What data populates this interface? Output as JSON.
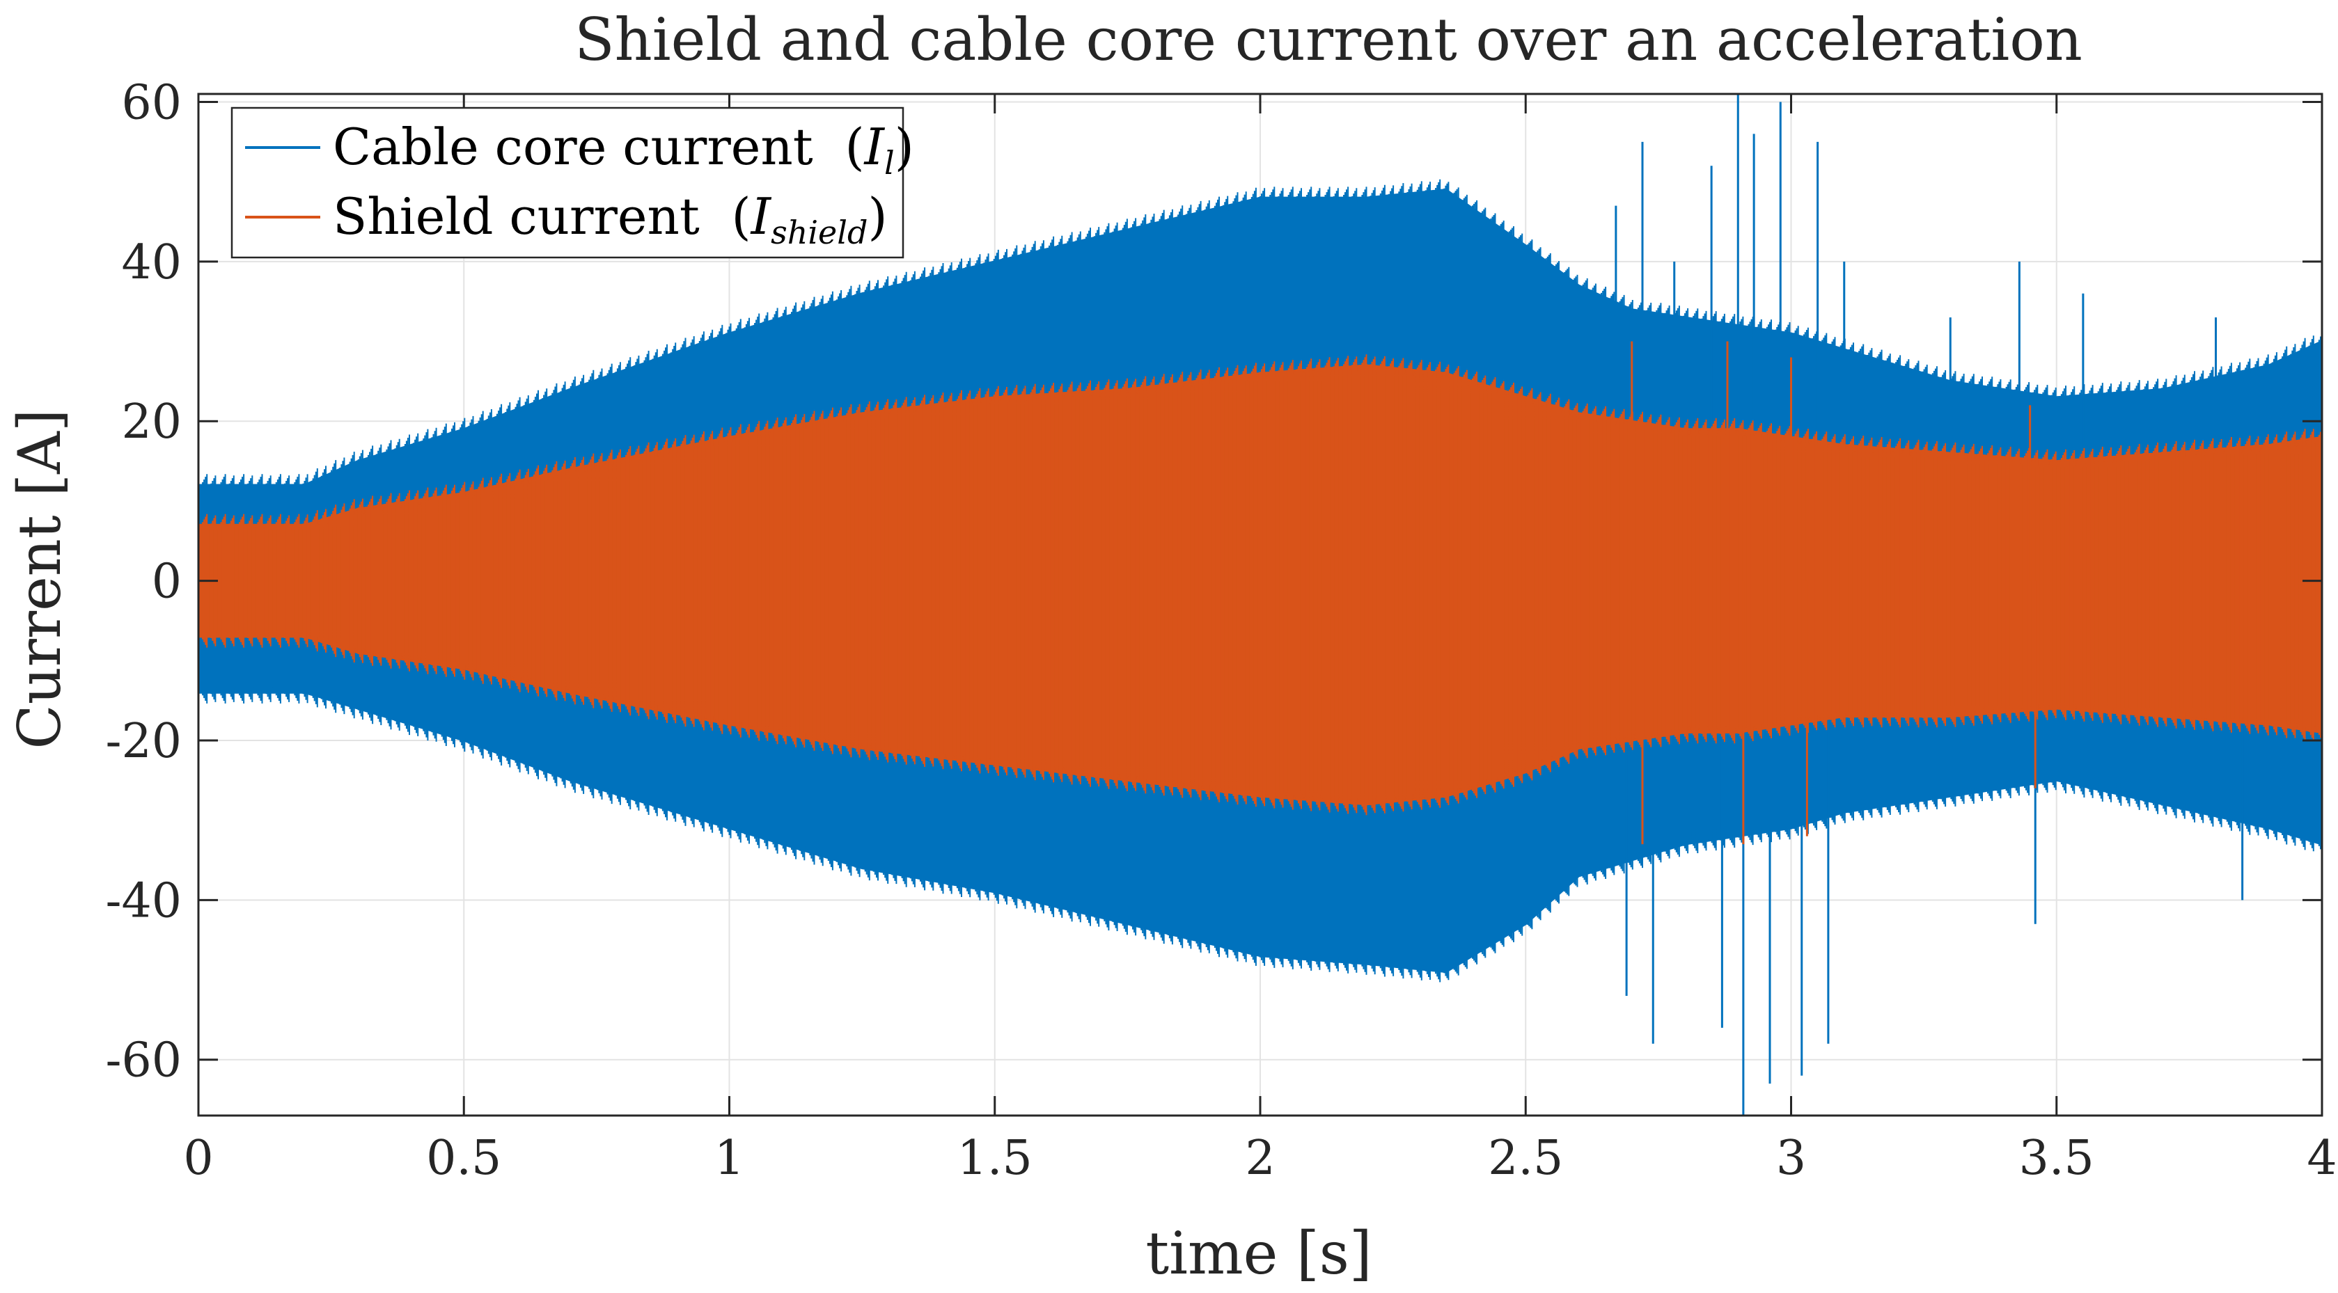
{
  "chart_data": {
    "type": "line",
    "title": "Shield and cable core current over an acceleration",
    "xlabel": "time [s]",
    "ylabel": "Current [A]",
    "xlim": [
      0,
      4
    ],
    "ylim": [
      -67,
      61
    ],
    "grid": true,
    "legend_position": "top-left",
    "x_ticks": [
      "0",
      "0.5",
      "1",
      "1.5",
      "2",
      "2.5",
      "3",
      "3.5",
      "4"
    ],
    "y_ticks": [
      "60",
      "40",
      "20",
      "0",
      "-20",
      "-40",
      "-60"
    ],
    "x_tick_values": [
      0,
      0.5,
      1,
      1.5,
      2,
      2.5,
      3,
      3.5,
      4
    ],
    "y_tick_values": [
      60,
      40,
      20,
      0,
      -20,
      -40,
      -60
    ],
    "series": [
      {
        "name": "Cable core current",
        "legend_symbol": "I",
        "legend_subscript": "l",
        "color": "#0072BD",
        "envelope_time": [
          0,
          0.2,
          0.3,
          0.5,
          0.7,
          1.0,
          1.25,
          1.5,
          1.75,
          2.0,
          2.2,
          2.35,
          2.5,
          2.6,
          2.7,
          2.8,
          2.9,
          3.0,
          3.1,
          3.3,
          3.5,
          3.7,
          3.9,
          4.0
        ],
        "envelope_upper": [
          12,
          12,
          15,
          19,
          24,
          31,
          36,
          40,
          44,
          48,
          48,
          49,
          42,
          37,
          34,
          33,
          32,
          31,
          29,
          25,
          23,
          24,
          27,
          30
        ],
        "envelope_lower": [
          -14,
          -14,
          -16,
          -20,
          -25,
          -31,
          -36,
          -39,
          -43,
          -47,
          -48,
          -49,
          -43,
          -37,
          -35,
          -33,
          -32,
          -31,
          -29,
          -27,
          -25,
          -28,
          -31,
          -33
        ],
        "spikes": [
          {
            "t": 2.67,
            "v": 47
          },
          {
            "t": 2.69,
            "v": -52
          },
          {
            "t": 2.72,
            "v": 55
          },
          {
            "t": 2.74,
            "v": -58
          },
          {
            "t": 2.78,
            "v": 40
          },
          {
            "t": 2.85,
            "v": 52
          },
          {
            "t": 2.87,
            "v": -56
          },
          {
            "t": 2.9,
            "v": 61
          },
          {
            "t": 2.91,
            "v": -67
          },
          {
            "t": 2.93,
            "v": 56
          },
          {
            "t": 2.96,
            "v": -63
          },
          {
            "t": 2.98,
            "v": 60
          },
          {
            "t": 3.02,
            "v": -62
          },
          {
            "t": 3.05,
            "v": 55
          },
          {
            "t": 3.07,
            "v": -58
          },
          {
            "t": 3.1,
            "v": 40
          },
          {
            "t": 3.3,
            "v": 33
          },
          {
            "t": 3.43,
            "v": 40
          },
          {
            "t": 3.46,
            "v": -43
          },
          {
            "t": 3.55,
            "v": 36
          },
          {
            "t": 3.8,
            "v": 33
          },
          {
            "t": 3.85,
            "v": -40
          }
        ]
      },
      {
        "name": "Shield current",
        "legend_symbol": "I",
        "legend_subscript": "shield",
        "color": "#D95319",
        "envelope_time": [
          0,
          0.2,
          0.3,
          0.5,
          0.7,
          1.0,
          1.25,
          1.5,
          1.75,
          2.0,
          2.2,
          2.35,
          2.5,
          2.6,
          2.7,
          2.8,
          2.9,
          3.0,
          3.1,
          3.3,
          3.5,
          3.7,
          3.9,
          4.0
        ],
        "envelope_upper": [
          7,
          7,
          9,
          11,
          14,
          18,
          21,
          23,
          24,
          26,
          27,
          26,
          23,
          21,
          20,
          19,
          19,
          18,
          17,
          16,
          15,
          16,
          17,
          18
        ],
        "envelope_lower": [
          -7,
          -7,
          -9,
          -11,
          -14,
          -18,
          -21,
          -23,
          -25,
          -27,
          -28,
          -27,
          -24,
          -21,
          -20,
          -19,
          -19,
          -18,
          -17,
          -17,
          -16,
          -17,
          -18,
          -19
        ],
        "spikes": [
          {
            "t": 2.7,
            "v": 30
          },
          {
            "t": 2.72,
            "v": -33
          },
          {
            "t": 2.88,
            "v": 30
          },
          {
            "t": 2.91,
            "v": -33
          },
          {
            "t": 3.0,
            "v": 28
          },
          {
            "t": 3.03,
            "v": -32
          },
          {
            "t": 3.45,
            "v": 22
          },
          {
            "t": 3.46,
            "v": -26
          }
        ]
      }
    ]
  }
}
